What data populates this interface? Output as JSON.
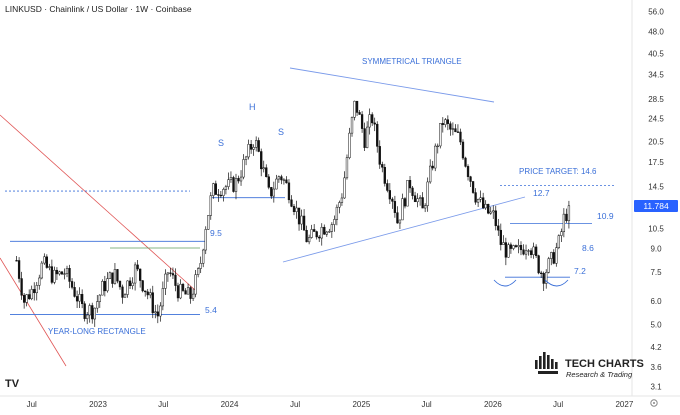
{
  "header": {
    "title": "LINKUSD · Chainlink / US Dollar · 1W · Coinbase"
  },
  "chart_data": {
    "type": "candlestick",
    "y_scale": "log",
    "y_axis_ticks": [
      56.0,
      48.0,
      40.5,
      34.5,
      28.5,
      24.5,
      20.5,
      17.5,
      14.5,
      12.5,
      10.5,
      9.0,
      7.5,
      6.0,
      5.0,
      4.2,
      3.6,
      3.1
    ],
    "x_axis_ticks": [
      {
        "label": "Jul",
        "date": "2022-07-01"
      },
      {
        "label": "2023",
        "date": "2023-01-01"
      },
      {
        "label": "Jul",
        "date": "2023-07-01"
      },
      {
        "label": "2024",
        "date": "2024-01-01"
      },
      {
        "label": "Jul",
        "date": "2024-07-01"
      },
      {
        "label": "2025",
        "date": "2025-01-01"
      },
      {
        "label": "Jul",
        "date": "2025-07-01"
      },
      {
        "label": "2026",
        "date": "2026-01-01"
      },
      {
        "label": "Jul",
        "date": "2026-07-01"
      },
      {
        "label": "2027",
        "date": "2027-01-01"
      }
    ],
    "last_price": "11.784",
    "price_path": [
      [
        "2022-05-20",
        8.2
      ],
      [
        "2022-06-10",
        6.0
      ],
      [
        "2022-07-01",
        6.5
      ],
      [
        "2022-08-01",
        8.0
      ],
      [
        "2022-09-01",
        7.2
      ],
      [
        "2022-10-01",
        7.5
      ],
      [
        "2022-11-01",
        6.3
      ],
      [
        "2022-11-20",
        5.6
      ],
      [
        "2022-12-20",
        5.6
      ],
      [
        "2023-01-15",
        6.7
      ],
      [
        "2023-02-15",
        7.4
      ],
      [
        "2023-03-10",
        6.4
      ],
      [
        "2023-04-15",
        7.7
      ],
      [
        "2023-05-15",
        6.5
      ],
      [
        "2023-06-15",
        5.3
      ],
      [
        "2023-07-15",
        7.6
      ],
      [
        "2023-08-15",
        6.4
      ],
      [
        "2023-09-15",
        6.2
      ],
      [
        "2023-10-10",
        7.6
      ],
      [
        "2023-10-25",
        10.5
      ],
      [
        "2023-11-15",
        14.0
      ],
      [
        "2023-12-10",
        14.5
      ],
      [
        "2023-12-30",
        14.5
      ],
      [
        "2024-01-20",
        15.0
      ],
      [
        "2024-02-20",
        18.5
      ],
      [
        "2024-03-10",
        21.0
      ],
      [
        "2024-04-01",
        17.0
      ],
      [
        "2024-04-20",
        13.5
      ],
      [
        "2024-05-20",
        16.0
      ],
      [
        "2024-06-15",
        14.0
      ],
      [
        "2024-07-05",
        12.0
      ],
      [
        "2024-08-05",
        9.5
      ],
      [
        "2024-09-10",
        10.5
      ],
      [
        "2024-10-15",
        11.0
      ],
      [
        "2024-11-10",
        14.0
      ],
      [
        "2024-12-01",
        22.0
      ],
      [
        "2024-12-15",
        28.0
      ],
      [
        "2025-01-10",
        21.0
      ],
      [
        "2025-01-30",
        25.0
      ],
      [
        "2025-02-25",
        17.0
      ],
      [
        "2025-04-01",
        13.0
      ],
      [
        "2025-04-10",
        11.0
      ],
      [
        "2025-05-15",
        15.0
      ],
      [
        "2025-06-20",
        12.0
      ],
      [
        "2025-07-20",
        18.0
      ],
      [
        "2025-08-15",
        24.0
      ],
      [
        "2025-09-10",
        22.0
      ],
      [
        "2025-10-01",
        21.0
      ],
      [
        "2025-10-20",
        17.0
      ],
      [
        "2025-11-15",
        13.5
      ],
      [
        "2025-12-10",
        12.0
      ],
      [
        "2026-01-05",
        11.5
      ],
      [
        "2026-01-20",
        9.5
      ],
      [
        "2026-02-15",
        8.6
      ],
      [
        "2026-03-15",
        8.8
      ],
      [
        "2026-04-10",
        9.5
      ],
      [
        "2026-05-01",
        8.2
      ],
      [
        "2026-05-20",
        7.3
      ],
      [
        "2026-06-15",
        8.3
      ],
      [
        "2026-07-05",
        9.5
      ],
      [
        "2026-07-20",
        11.8
      ],
      [
        "2026-08-01",
        11.784
      ]
    ],
    "annotations": {
      "year_long_rectangle": {
        "label": "YEAR-LONG RECTANGLE",
        "top": 9.5,
        "bottom": 5.4,
        "top_label": "9.5",
        "bottom_label": "5.4"
      },
      "symmetrical_triangle": {
        "label": "SYMMETRICAL TRIANGLE"
      },
      "head_shoulders": {
        "head": "H",
        "left_shoulder": "S",
        "right_shoulder": "S"
      },
      "price_target": {
        "label": "PRICE TARGET: 14.6",
        "value": 14.6
      },
      "levels": [
        {
          "label": "12.7",
          "value": 12.7
        },
        {
          "label": "10.9",
          "value": 10.9
        },
        {
          "label": "8.6",
          "value": 8.6
        },
        {
          "label": "7.2",
          "value": 7.2
        }
      ]
    },
    "colors": {
      "annotation": "#3a6fd8",
      "triangle_line": "#7b9bea",
      "down_channel": "#e05656",
      "green_line": "#5c9b5c",
      "candles": "#111111",
      "last_price_badge": "#2962ff"
    }
  },
  "watermark": {
    "brand": "TECH CHARTS",
    "tagline": "Research & Trading",
    "platform": "TV"
  }
}
